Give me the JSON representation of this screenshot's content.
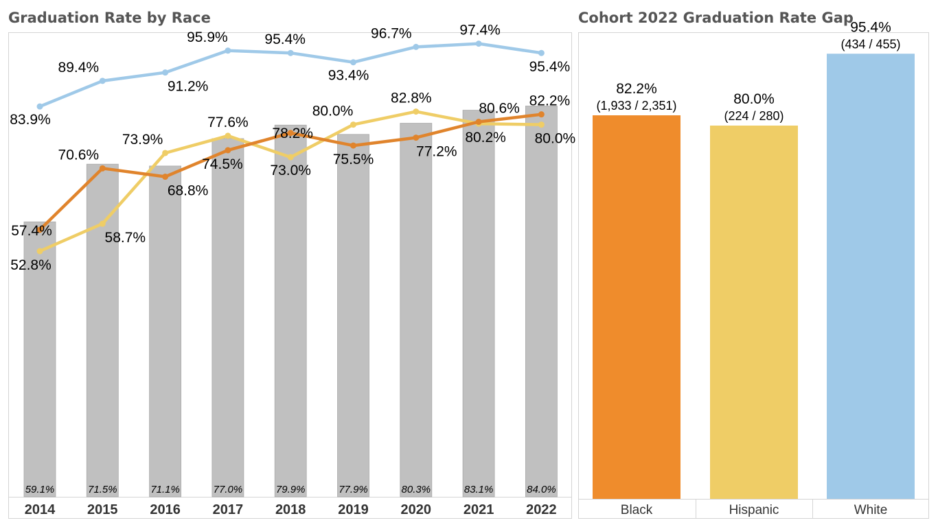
{
  "left_title": "Graduation Rate by Race",
  "right_title": "Cohort 2022 Graduation Rate Gap",
  "colors": {
    "overall_bar": "#c0c0c0",
    "white": "#9fc9e8",
    "hispanic": "#efcd66",
    "black": "#ef8c2c",
    "black_line": "#e0842c"
  },
  "chart_data": [
    {
      "type": "bar",
      "title": "Graduation Rate by Race",
      "categories": [
        "2014",
        "2015",
        "2016",
        "2017",
        "2018",
        "2019",
        "2020",
        "2021",
        "2022"
      ],
      "ylim": [
        0,
        100
      ],
      "grid": false,
      "bar_series": {
        "values": [
          59.1,
          71.5,
          71.1,
          77.0,
          79.9,
          77.9,
          80.3,
          83.1,
          84.0
        ],
        "labels": [
          "59.1%",
          "71.5%",
          "71.1%",
          "77.0%",
          "79.9%",
          "77.9%",
          "80.3%",
          "83.1%",
          "84.0%"
        ]
      },
      "line_series": [
        {
          "key": "white",
          "values": [
            83.9,
            89.4,
            91.2,
            95.9,
            95.4,
            93.4,
            96.7,
            97.4,
            95.4
          ],
          "labels": [
            "83.9%",
            "89.4%",
            "91.2%",
            "95.9%",
            "95.4%",
            "93.4%",
            "96.7%",
            "97.4%",
            "95.4%"
          ]
        },
        {
          "key": "hispanic",
          "values": [
            52.8,
            58.7,
            73.9,
            77.6,
            73.0,
            80.0,
            82.8,
            80.2,
            80.0
          ],
          "labels": [
            "52.8%",
            "58.7%",
            "73.9%",
            "77.6%",
            "73.0%",
            "80.0%",
            "82.8%",
            "80.2%",
            "80.0%"
          ]
        },
        {
          "key": "black",
          "values": [
            57.4,
            70.6,
            68.8,
            74.5,
            78.2,
            75.5,
            77.2,
            80.6,
            82.2
          ],
          "labels": [
            "57.4%",
            "70.6%",
            "68.8%",
            "74.5%",
            "78.2%",
            "75.5%",
            "77.2%",
            "80.6%",
            "82.2%"
          ]
        }
      ]
    },
    {
      "type": "bar",
      "title": "Cohort 2022 Graduation Rate Gap",
      "categories": [
        "Black",
        "Hispanic",
        "White"
      ],
      "values": [
        82.2,
        80.0,
        95.4
      ],
      "labels": [
        "82.2%",
        "80.0%",
        "95.4%"
      ],
      "fractions": [
        "(1,933 / 2,351)",
        "(224 / 280)",
        "(434 / 455)"
      ],
      "ylim": [
        0,
        100
      ],
      "grid": false
    }
  ]
}
